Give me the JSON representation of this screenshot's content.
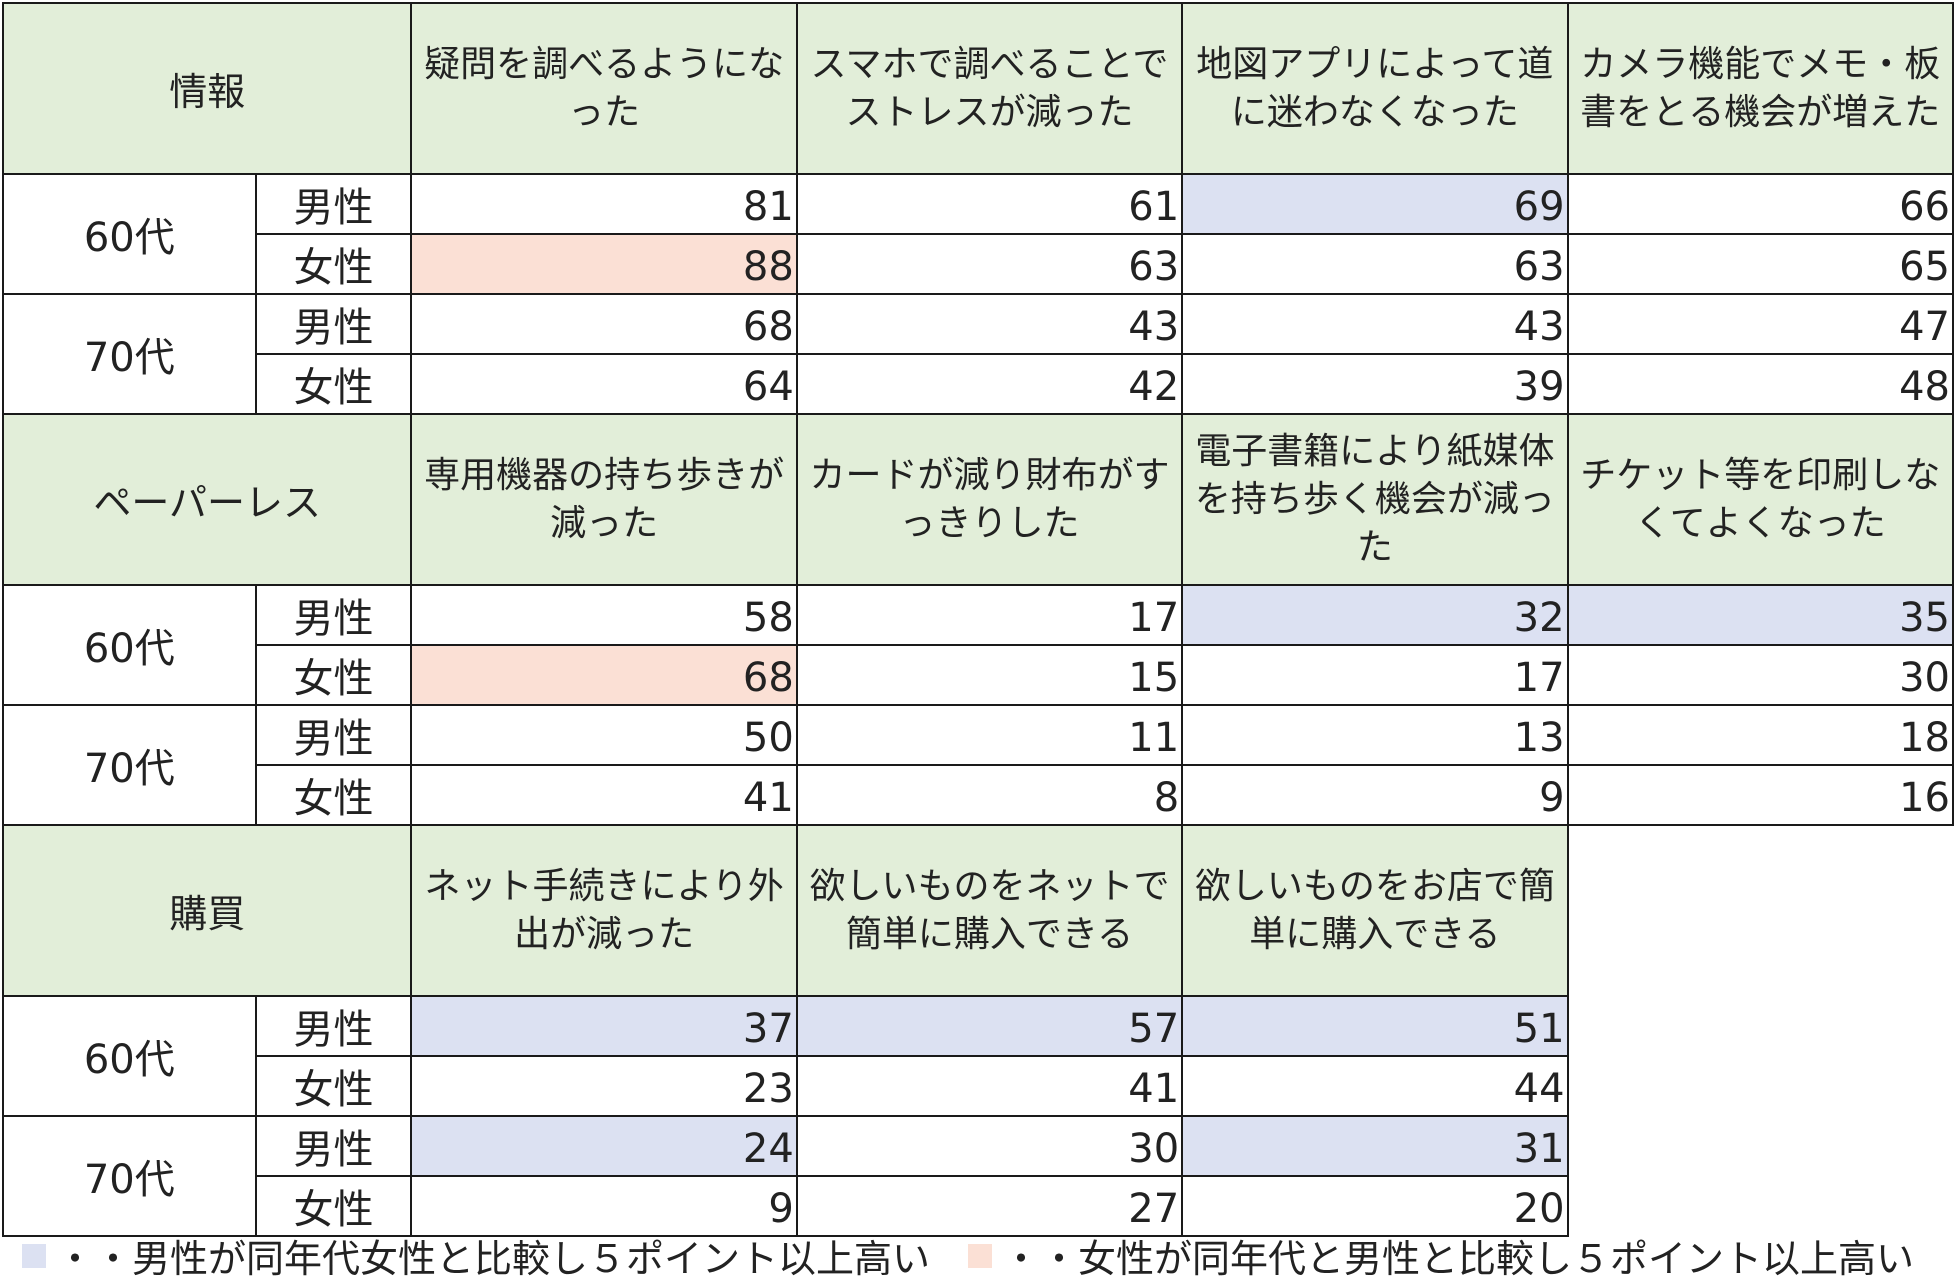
{
  "chart_data": {
    "type": "table",
    "colors": {
      "header_bg": "#e2eed9",
      "male_highlight": "#dce1f2",
      "female_highlight": "#fbe0d5"
    },
    "sections": [
      {
        "category": "情報",
        "questions": [
          "疑問を調べるようになった",
          "スマホで調べることでストレスが減った",
          "地図アプリによって道に迷わなくなった",
          "カメラ機能でメモ・板書をとる機会が増えた"
        ],
        "groups": [
          {
            "age": "60代",
            "rows": [
              {
                "gender": "男性",
                "values": [
                  81,
                  61,
                  69,
                  66
                ],
                "highlight": [
                  "",
                  "",
                  "male",
                  ""
                ]
              },
              {
                "gender": "女性",
                "values": [
                  88,
                  63,
                  63,
                  65
                ],
                "highlight": [
                  "female",
                  "",
                  "",
                  ""
                ]
              }
            ]
          },
          {
            "age": "70代",
            "rows": [
              {
                "gender": "男性",
                "values": [
                  68,
                  43,
                  43,
                  47
                ],
                "highlight": [
                  "",
                  "",
                  "",
                  ""
                ]
              },
              {
                "gender": "女性",
                "values": [
                  64,
                  42,
                  39,
                  48
                ],
                "highlight": [
                  "",
                  "",
                  "",
                  ""
                ]
              }
            ]
          }
        ]
      },
      {
        "category": "ペーパーレス",
        "questions": [
          "専用機器の持ち歩きが減った",
          "カードが減り財布がすっきりした",
          "電子書籍により紙媒体を持ち歩く機会が減った",
          "チケット等を印刷しなくてよくなった"
        ],
        "groups": [
          {
            "age": "60代",
            "rows": [
              {
                "gender": "男性",
                "values": [
                  58,
                  17,
                  32,
                  35
                ],
                "highlight": [
                  "",
                  "",
                  "male",
                  "male"
                ]
              },
              {
                "gender": "女性",
                "values": [
                  68,
                  15,
                  17,
                  30
                ],
                "highlight": [
                  "female",
                  "",
                  "",
                  ""
                ]
              }
            ]
          },
          {
            "age": "70代",
            "rows": [
              {
                "gender": "男性",
                "values": [
                  50,
                  11,
                  13,
                  18
                ],
                "highlight": [
                  "",
                  "",
                  "",
                  ""
                ]
              },
              {
                "gender": "女性",
                "values": [
                  41,
                  8,
                  9,
                  16
                ],
                "highlight": [
                  "",
                  "",
                  "",
                  ""
                ]
              }
            ]
          }
        ]
      },
      {
        "category": "購買",
        "questions": [
          "ネット手続きにより外出が減った",
          "欲しいものをネットで簡単に購入できる",
          "欲しいものをお店で簡単に購入できる"
        ],
        "groups": [
          {
            "age": "60代",
            "rows": [
              {
                "gender": "男性",
                "values": [
                  37,
                  57,
                  51
                ],
                "highlight": [
                  "male",
                  "male",
                  "male"
                ]
              },
              {
                "gender": "女性",
                "values": [
                  23,
                  41,
                  44
                ],
                "highlight": [
                  "",
                  "",
                  ""
                ]
              }
            ]
          },
          {
            "age": "70代",
            "rows": [
              {
                "gender": "男性",
                "values": [
                  24,
                  30,
                  31
                ],
                "highlight": [
                  "male",
                  "",
                  "male"
                ]
              },
              {
                "gender": "女性",
                "values": [
                  9,
                  27,
                  20
                ],
                "highlight": [
                  "",
                  "",
                  ""
                ]
              }
            ]
          }
        ]
      }
    ]
  },
  "legend": {
    "male": {
      "text": "・・男性が同年代女性と比較し５ポイント以上高い",
      "color": "#dce1f2",
      "icon": "square-swatch"
    },
    "female": {
      "text": "・・女性が同年代と男性と比較し５ポイント以上高い",
      "color": "#fbe0d5",
      "icon": "square-swatch"
    }
  }
}
